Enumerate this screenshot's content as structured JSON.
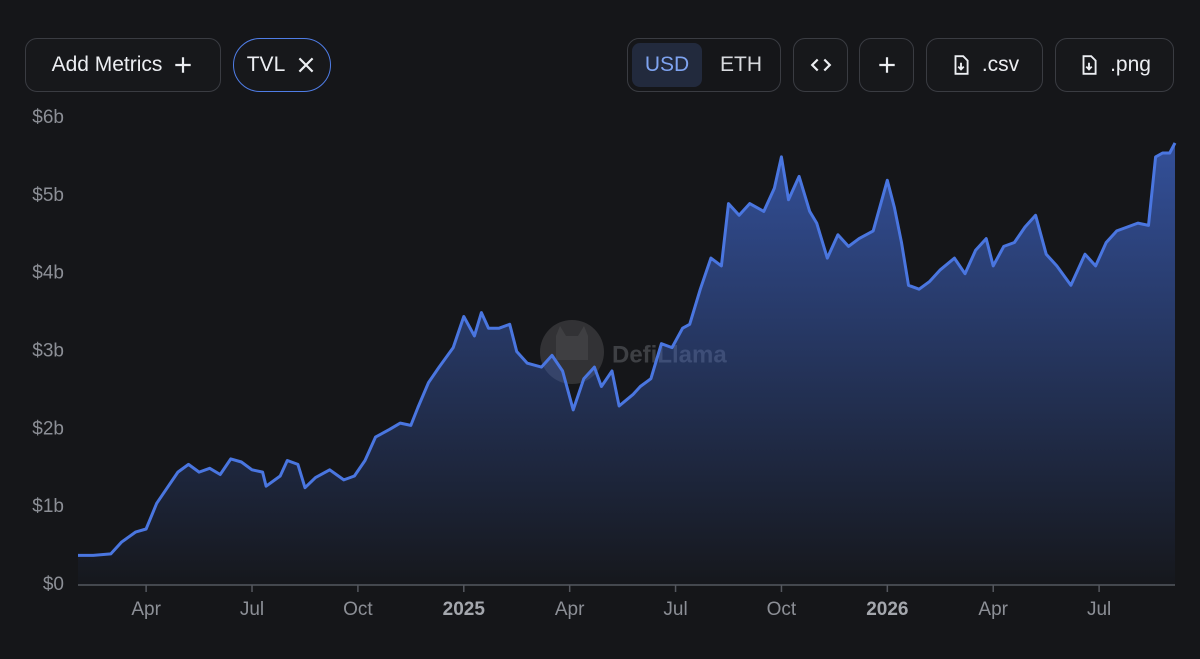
{
  "toolbar": {
    "add_metrics": "Add Metrics",
    "metric": "TVL",
    "currency": [
      "USD",
      "ETH"
    ],
    "downloads": [
      ".csv",
      ".png"
    ]
  },
  "chart_data": {
    "type": "area",
    "watermark": "DefiLlama",
    "color": "#4a76e0",
    "x": [
      1.07,
      1.5,
      2.0,
      2.3,
      2.7,
      3.0,
      3.3,
      3.6,
      3.9,
      4.2,
      4.5,
      4.8,
      5.1,
      5.4,
      5.7,
      6.0,
      6.3,
      6.4,
      6.8,
      7.0,
      7.3,
      7.5,
      7.8,
      8.2,
      8.6,
      8.9,
      9.2,
      9.5,
      9.9,
      10.2,
      10.5,
      10.7,
      11.0,
      11.3,
      11.7,
      12.0,
      12.3,
      12.5,
      12.7,
      13.0,
      13.3,
      13.5,
      13.8,
      14.2,
      14.5,
      14.8,
      15.1,
      15.4,
      15.7,
      15.9,
      16.2,
      16.4,
      16.8,
      17.0,
      17.3,
      17.6,
      17.9,
      18.2,
      18.4,
      18.7,
      19.0,
      19.3,
      19.5,
      19.8,
      20.1,
      20.5,
      20.8,
      21.0,
      21.2,
      21.5,
      21.8,
      22.0,
      22.3,
      22.6,
      22.9,
      23.2,
      23.6,
      24.0,
      24.2,
      24.4,
      24.6,
      24.9,
      25.2,
      25.5,
      25.9,
      26.2,
      26.5,
      26.8,
      27.0,
      27.3,
      27.6,
      27.9,
      28.2,
      28.5,
      28.8,
      29.2,
      29.6,
      29.9,
      30.2,
      30.5,
      30.8,
      31.1,
      31.4,
      31.6,
      31.8,
      32.0,
      32.15
    ],
    "values": [
      0.38,
      0.38,
      0.4,
      0.55,
      0.68,
      0.72,
      1.05,
      1.25,
      1.45,
      1.55,
      1.45,
      1.5,
      1.42,
      1.62,
      1.58,
      1.48,
      1.45,
      1.27,
      1.4,
      1.6,
      1.55,
      1.25,
      1.38,
      1.48,
      1.35,
      1.4,
      1.6,
      1.9,
      2.0,
      2.08,
      2.05,
      2.28,
      2.6,
      2.8,
      3.05,
      3.45,
      3.2,
      3.5,
      3.3,
      3.3,
      3.35,
      3.0,
      2.85,
      2.8,
      2.95,
      2.75,
      2.25,
      2.65,
      2.8,
      2.55,
      2.75,
      2.3,
      2.45,
      2.55,
      2.65,
      3.1,
      3.05,
      3.3,
      3.35,
      3.8,
      4.2,
      4.1,
      4.9,
      4.75,
      4.9,
      4.8,
      5.1,
      5.5,
      4.95,
      5.25,
      4.8,
      4.65,
      4.2,
      4.5,
      4.35,
      4.45,
      4.55,
      5.2,
      4.85,
      4.4,
      3.85,
      3.8,
      3.9,
      4.05,
      4.2,
      4.0,
      4.3,
      4.45,
      4.1,
      4.35,
      4.4,
      4.6,
      4.75,
      4.25,
      4.1,
      3.85,
      4.25,
      4.1,
      4.4,
      4.55,
      4.6,
      4.65,
      4.62,
      5.5,
      5.55,
      5.55,
      5.68
    ],
    "xlim": [
      1.07,
      32.15
    ],
    "xticks": [
      {
        "value": 3,
        "label": "Apr"
      },
      {
        "value": 6,
        "label": "Jul"
      },
      {
        "value": 9,
        "label": "Oct"
      },
      {
        "value": 12,
        "label": "2025"
      },
      {
        "value": 15,
        "label": "Apr"
      },
      {
        "value": 18,
        "label": "Jul"
      },
      {
        "value": 21,
        "label": "Oct"
      },
      {
        "value": 24,
        "label": "2026"
      },
      {
        "value": 27,
        "label": "Apr"
      },
      {
        "value": 30,
        "label": "Jul"
      }
    ],
    "ylim": [
      0,
      6
    ],
    "yticks": [
      {
        "value": 0,
        "label": "$0"
      },
      {
        "value": 1,
        "label": "$1b"
      },
      {
        "value": 2,
        "label": "$2b"
      },
      {
        "value": 3,
        "label": "$3b"
      },
      {
        "value": 4,
        "label": "$4b"
      },
      {
        "value": 5,
        "label": "$5b"
      },
      {
        "value": 6,
        "label": "$6b"
      }
    ]
  }
}
